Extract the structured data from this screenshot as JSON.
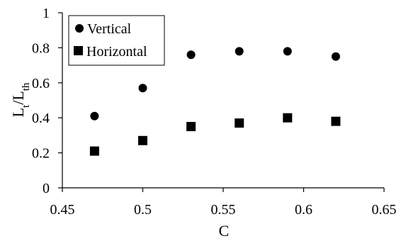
{
  "chart_data": {
    "type": "scatter",
    "title": "",
    "xlabel": "C",
    "ylabel": "L_t/L_th",
    "xlim": [
      0.45,
      0.65
    ],
    "ylim": [
      0,
      1
    ],
    "xticks": [
      "0.45",
      "0.5",
      "0.55",
      "0.6",
      "0.65"
    ],
    "yticks": [
      "0",
      "0.2",
      "0.4",
      "0.6",
      "0.8",
      "1"
    ],
    "grid": false,
    "legend_position": "top-left",
    "series": [
      {
        "name": "Vertical",
        "marker": "circle",
        "color": "#000000",
        "x": [
          0.47,
          0.5,
          0.53,
          0.56,
          0.59,
          0.62
        ],
        "y": [
          0.41,
          0.57,
          0.76,
          0.78,
          0.78,
          0.75
        ]
      },
      {
        "name": "Horizontal",
        "marker": "square",
        "color": "#000000",
        "x": [
          0.47,
          0.5,
          0.53,
          0.56,
          0.59,
          0.62
        ],
        "y": [
          0.21,
          0.27,
          0.35,
          0.37,
          0.4,
          0.38
        ]
      }
    ]
  }
}
